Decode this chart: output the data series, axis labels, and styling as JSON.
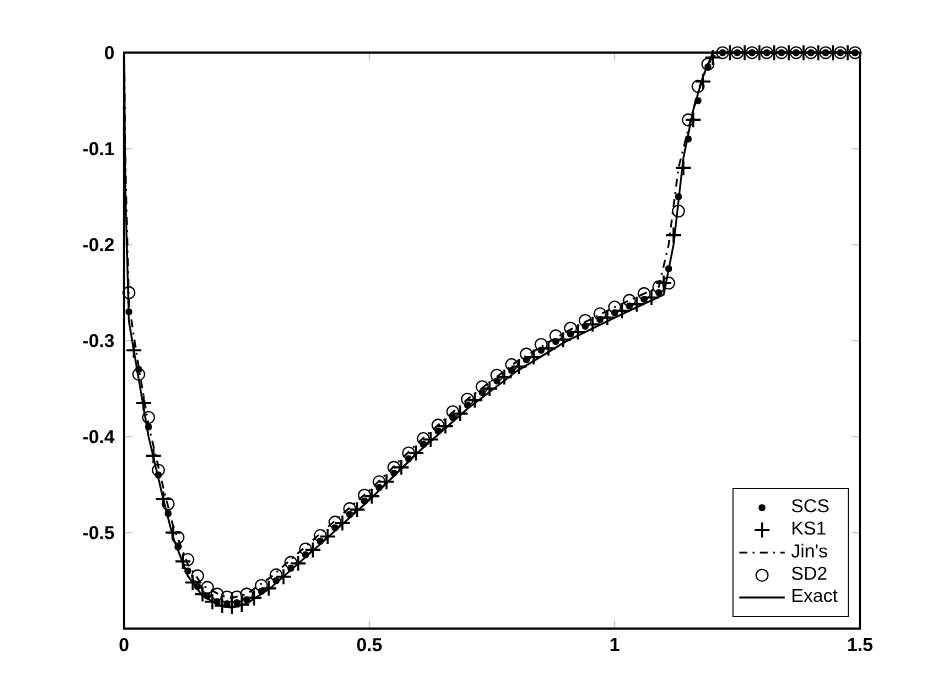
{
  "chart_data": {
    "type": "line",
    "xlim": [
      0,
      1.5
    ],
    "ylim": [
      -0.6,
      0
    ],
    "xticks": [
      0,
      0.5,
      1,
      1.5
    ],
    "yticks": [
      {
        "value": -0.6,
        "label": null
      },
      -0.5,
      -0.4,
      -0.3,
      -0.2,
      -0.1,
      0
    ],
    "grid": false,
    "legend": "bottom right",
    "series": [
      {
        "name": "SCS",
        "type": "scatter",
        "marker": "circle",
        "color": "#000000",
        "x": [
          0.01,
          0.03,
          0.05,
          0.07,
          0.09,
          0.11,
          0.13,
          0.15,
          0.17,
          0.19,
          0.21,
          0.23,
          0.25,
          0.28,
          0.31,
          0.34,
          0.37,
          0.4,
          0.43,
          0.46,
          0.49,
          0.52,
          0.55,
          0.58,
          0.61,
          0.64,
          0.67,
          0.7,
          0.73,
          0.76,
          0.79,
          0.82,
          0.85,
          0.88,
          0.91,
          0.94,
          0.97,
          1.0,
          1.03,
          1.06,
          1.09,
          1.11,
          1.13,
          1.15,
          1.17,
          1.19,
          1.22,
          1.25,
          1.28,
          1.31,
          1.34,
          1.37,
          1.4,
          1.43,
          1.46,
          1.49
        ],
        "values": [
          -0.27,
          -0.33,
          -0.39,
          -0.44,
          -0.48,
          -0.515,
          -0.54,
          -0.556,
          -0.566,
          -0.572,
          -0.574,
          -0.573,
          -0.57,
          -0.561,
          -0.55,
          -0.537,
          -0.523,
          -0.509,
          -0.495,
          -0.481,
          -0.467,
          -0.453,
          -0.438,
          -0.423,
          -0.408,
          -0.394,
          -0.38,
          -0.367,
          -0.354,
          -0.342,
          -0.331,
          -0.32,
          -0.31,
          -0.301,
          -0.293,
          -0.285,
          -0.278,
          -0.271,
          -0.264,
          -0.257,
          -0.25,
          -0.225,
          -0.15,
          -0.09,
          -0.05,
          -0.015,
          0,
          0,
          0,
          0,
          0,
          0,
          0,
          0,
          0,
          0
        ]
      },
      {
        "name": "KS1",
        "type": "scatter",
        "marker": "cross",
        "color": "#000000",
        "x": [
          0.02,
          0.04,
          0.06,
          0.08,
          0.1,
          0.12,
          0.14,
          0.16,
          0.18,
          0.2,
          0.22,
          0.24,
          0.265,
          0.295,
          0.325,
          0.355,
          0.385,
          0.415,
          0.445,
          0.475,
          0.505,
          0.535,
          0.565,
          0.595,
          0.625,
          0.655,
          0.685,
          0.715,
          0.745,
          0.775,
          0.805,
          0.835,
          0.865,
          0.895,
          0.925,
          0.955,
          0.985,
          1.015,
          1.045,
          1.075,
          1.1,
          1.12,
          1.14,
          1.16,
          1.18,
          1.2,
          1.235,
          1.265,
          1.295,
          1.325,
          1.355,
          1.385,
          1.415,
          1.445,
          1.475
        ],
        "values": [
          -0.31,
          -0.365,
          -0.42,
          -0.465,
          -0.5,
          -0.53,
          -0.552,
          -0.564,
          -0.572,
          -0.576,
          -0.577,
          -0.575,
          -0.568,
          -0.558,
          -0.546,
          -0.532,
          -0.518,
          -0.504,
          -0.49,
          -0.476,
          -0.462,
          -0.447,
          -0.432,
          -0.417,
          -0.403,
          -0.389,
          -0.376,
          -0.362,
          -0.35,
          -0.338,
          -0.327,
          -0.317,
          -0.308,
          -0.299,
          -0.291,
          -0.283,
          -0.276,
          -0.269,
          -0.262,
          -0.255,
          -0.24,
          -0.19,
          -0.12,
          -0.07,
          -0.03,
          -0.005,
          0,
          0,
          0,
          0,
          0,
          0,
          0,
          0,
          0
        ]
      },
      {
        "name": "Jin's",
        "type": "line",
        "line_style": "dashdot",
        "color": "#000000",
        "x": [
          0,
          0.003,
          0.01,
          0.03,
          0.05,
          0.08,
          0.1,
          0.13,
          0.16,
          0.2,
          0.22,
          0.25,
          0.3,
          0.4,
          0.5,
          0.6,
          0.7,
          0.8,
          0.9,
          1.0,
          1.09,
          1.11,
          1.13,
          1.15,
          1.17,
          1.19,
          1.21,
          1.5
        ],
        "values": [
          0,
          -0.12,
          -0.262,
          -0.328,
          -0.388,
          -0.453,
          -0.493,
          -0.533,
          -0.555,
          -0.566,
          -0.568,
          -0.564,
          -0.546,
          -0.501,
          -0.456,
          -0.406,
          -0.361,
          -0.322,
          -0.291,
          -0.265,
          -0.244,
          -0.2,
          -0.12,
          -0.08,
          -0.04,
          -0.012,
          0,
          0
        ]
      },
      {
        "name": "SD2",
        "type": "scatter",
        "marker": "circle",
        "color": "#000000",
        "x": [
          0.01,
          0.03,
          0.05,
          0.07,
          0.09,
          0.11,
          0.13,
          0.15,
          0.17,
          0.19,
          0.21,
          0.23,
          0.25,
          0.28,
          0.31,
          0.34,
          0.37,
          0.4,
          0.43,
          0.46,
          0.49,
          0.52,
          0.55,
          0.58,
          0.61,
          0.64,
          0.67,
          0.7,
          0.73,
          0.76,
          0.79,
          0.82,
          0.85,
          0.88,
          0.91,
          0.94,
          0.97,
          1.0,
          1.03,
          1.06,
          1.09,
          1.11,
          1.13,
          1.15,
          1.17,
          1.19,
          1.22,
          1.25,
          1.28,
          1.31,
          1.34,
          1.37,
          1.4,
          1.43,
          1.46,
          1.49
        ],
        "values": [
          -0.25,
          -0.335,
          -0.38,
          -0.435,
          -0.47,
          -0.505,
          -0.528,
          -0.545,
          -0.557,
          -0.564,
          -0.567,
          -0.567,
          -0.564,
          -0.555,
          -0.544,
          -0.531,
          -0.517,
          -0.503,
          -0.489,
          -0.475,
          -0.461,
          -0.447,
          -0.432,
          -0.417,
          -0.402,
          -0.388,
          -0.374,
          -0.361,
          -0.348,
          -0.336,
          -0.325,
          -0.314,
          -0.304,
          -0.295,
          -0.287,
          -0.279,
          -0.272,
          -0.265,
          -0.258,
          -0.251,
          -0.244,
          -0.24,
          -0.165,
          -0.07,
          -0.035,
          -0.012,
          0,
          0,
          0,
          0,
          0,
          0,
          0,
          0,
          0,
          0
        ]
      },
      {
        "name": "Exact",
        "line_style": "solid",
        "color": "#000000",
        "x": [
          0,
          0.003,
          0.01,
          0.03,
          0.05,
          0.08,
          0.1,
          0.13,
          0.16,
          0.2,
          0.22,
          0.25,
          0.3,
          0.4,
          0.5,
          0.6,
          0.7,
          0.8,
          0.9,
          1.0,
          1.1,
          1.12,
          1.14,
          1.16,
          1.18,
          1.2,
          1.5
        ],
        "values": [
          0,
          -0.15,
          -0.28,
          -0.34,
          -0.4,
          -0.465,
          -0.505,
          -0.545,
          -0.566,
          -0.577,
          -0.578,
          -0.574,
          -0.557,
          -0.512,
          -0.466,
          -0.416,
          -0.371,
          -0.332,
          -0.301,
          -0.276,
          -0.252,
          -0.2,
          -0.11,
          -0.06,
          -0.025,
          0,
          0
        ]
      }
    ]
  }
}
